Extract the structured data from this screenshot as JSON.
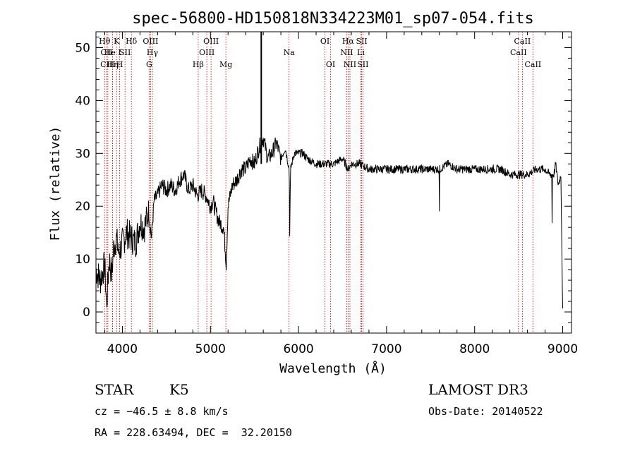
{
  "chart_data": {
    "type": "line",
    "title": "spec-56800-HD150818N334223M01_sp07-054.fits",
    "xlabel": "Wavelength (Å)",
    "ylabel": "Flux (relative)",
    "xlim": [
      3700,
      9100
    ],
    "ylim": [
      -4,
      53
    ],
    "x_ticks": [
      4000,
      5000,
      6000,
      7000,
      8000,
      9000
    ],
    "y_ticks": [
      0,
      10,
      20,
      30,
      40,
      50
    ],
    "grid": false,
    "series": [
      {
        "x": [
          3700,
          3750,
          3800,
          3820,
          3850,
          3880,
          3900,
          3930,
          3960,
          4000,
          4050,
          4100,
          4150,
          4200,
          4250,
          4300,
          4330,
          4360,
          4400,
          4450,
          4500,
          4550,
          4600,
          4650,
          4700,
          4750,
          4800,
          4850,
          4900,
          4950,
          5000,
          5030,
          5060,
          5100,
          5150,
          5180,
          5200,
          5250,
          5300,
          5350,
          5400,
          5450,
          5500,
          5550,
          5600,
          5650,
          5700,
          5750,
          5800,
          5850,
          5895,
          5900,
          5910,
          5950,
          6000,
          6050,
          6100,
          6200,
          6300,
          6400,
          6500,
          6563,
          6600,
          6700,
          6800,
          6900,
          7000,
          7100,
          7200,
          7300,
          7400,
          7500,
          7600,
          7700,
          7800,
          7900,
          8000,
          8100,
          8200,
          8300,
          8400,
          8500,
          8600,
          8700,
          8800,
          8850,
          8900,
          8920,
          8950,
          8980,
          9000
        ],
        "y": [
          8,
          6,
          9,
          1,
          10,
          7,
          12,
          14,
          11,
          13,
          15,
          14,
          13,
          17,
          16,
          19,
          14,
          21,
          22,
          24,
          23,
          24,
          23,
          25,
          26,
          23,
          24,
          22,
          23,
          22,
          20,
          21,
          19,
          17,
          16,
          9,
          20,
          24,
          25,
          27,
          27,
          29,
          28,
          31,
          33,
          29,
          30,
          32,
          29,
          31,
          27,
          15,
          27,
          30,
          30,
          30,
          29,
          28,
          28,
          28,
          29,
          27,
          28,
          28,
          27,
          27,
          27,
          27,
          27,
          27,
          27,
          27,
          27,
          28,
          27,
          27,
          27,
          27,
          27,
          27,
          26,
          26,
          26,
          27,
          27,
          26,
          26,
          28,
          24,
          26,
          0
        ]
      }
    ],
    "spectral_lines": [
      {
        "name": "Hθ",
        "x": 3798,
        "row": 1
      },
      {
        "name": "CII",
        "x": 3820,
        "row": 2
      },
      {
        "name": "CIII",
        "x": 3835,
        "row": 3
      },
      {
        "name": "Hη",
        "x": 3889,
        "row": 3
      },
      {
        "name": "He I",
        "x": 3889,
        "row": 2
      },
      {
        "name": "K",
        "x": 3934,
        "row": 1
      },
      {
        "name": "H",
        "x": 3969,
        "row": 3
      },
      {
        "name": "SII",
        "x": 4030,
        "row": 2
      },
      {
        "name": "Hδ",
        "x": 4102,
        "row": 1
      },
      {
        "name": "OIII",
        "x": 4320,
        "row": 1
      },
      {
        "name": "Hγ",
        "x": 4341,
        "row": 2
      },
      {
        "name": "G",
        "x": 4304,
        "row": 3
      },
      {
        "name": "OIII",
        "x": 5007,
        "row": 1
      },
      {
        "name": "OIII",
        "x": 4959,
        "row": 2
      },
      {
        "name": "Hβ",
        "x": 4861,
        "row": 3
      },
      {
        "name": "Mg",
        "x": 5175,
        "row": 3
      },
      {
        "name": "Na",
        "x": 5893,
        "row": 2
      },
      {
        "name": "OI",
        "x": 6300,
        "row": 1
      },
      {
        "name": "OI",
        "x": 6364,
        "row": 3
      },
      {
        "name": "Hα",
        "x": 6563,
        "row": 1
      },
      {
        "name": "NII",
        "x": 6548,
        "row": 2
      },
      {
        "name": "NII",
        "x": 6584,
        "row": 3
      },
      {
        "name": "SII",
        "x": 6717,
        "row": 1
      },
      {
        "name": "Li",
        "x": 6708,
        "row": 2
      },
      {
        "name": "SII",
        "x": 6731,
        "row": 3
      },
      {
        "name": "CaII",
        "x": 8542,
        "row": 1
      },
      {
        "name": "CaII",
        "x": 8498,
        "row": 2
      },
      {
        "name": "CaII",
        "x": 8662,
        "row": 3
      }
    ],
    "line_color": "#cc0000",
    "spike_x": 5577
  },
  "info": {
    "object_class": "STAR",
    "subclass": "K5",
    "survey": "LAMOST DR3",
    "cz": "cz = −46.5 ± 8.8 km/s",
    "obs_date": "Obs-Date: 20140522",
    "coords": "RA = 228.63494, DEC =  32.20150"
  }
}
